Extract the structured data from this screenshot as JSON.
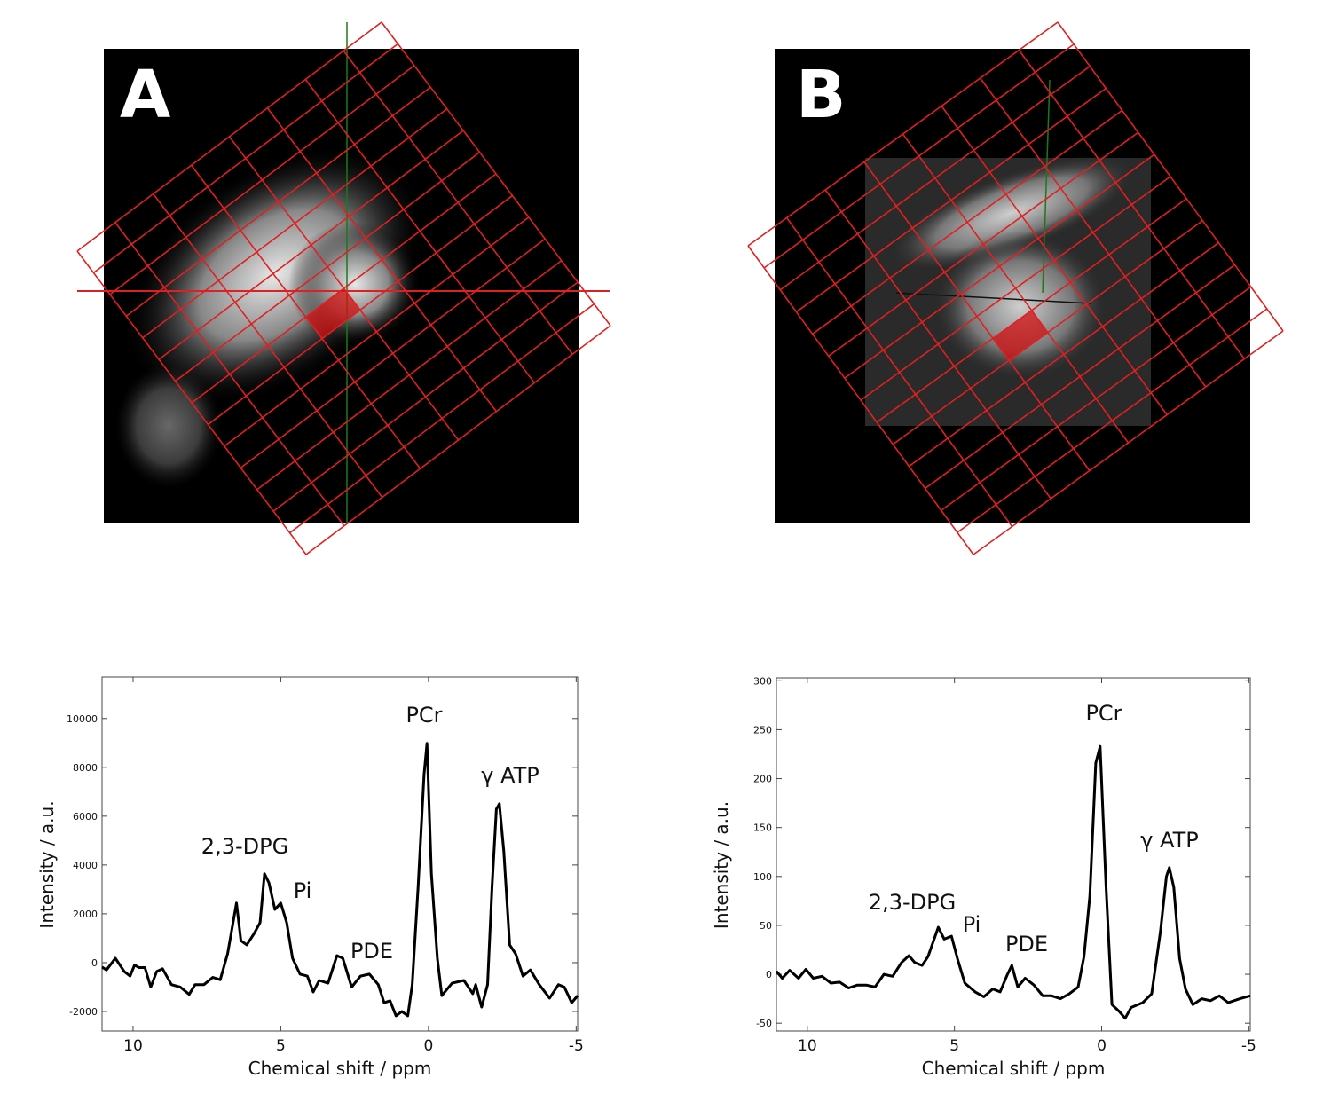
{
  "panels": [
    {
      "label": "A"
    },
    {
      "label": "B"
    }
  ],
  "chart_data": [
    {
      "type": "line",
      "xlabel": "Chemical shift / ppm",
      "ylabel": "Intensity / a.u.",
      "color": "#000000",
      "annotations": [
        "2,3-DPG",
        "Pi",
        "PDE",
        "PCr",
        "γ ATP"
      ],
      "xlim": [
        11.05,
        -5.05
      ],
      "xticks": [
        10,
        5,
        0,
        -5
      ],
      "ylim": [
        -2800,
        11700
      ],
      "yticks": [
        -2000,
        0,
        2000,
        4000,
        6000,
        8000,
        10000
      ],
      "x": [
        11.05,
        10.9,
        10.6,
        10.3,
        10.1,
        9.95,
        9.8,
        9.6,
        9.4,
        9.2,
        9.0,
        8.7,
        8.4,
        8.1,
        7.9,
        7.6,
        7.3,
        7.05,
        6.8,
        6.5,
        6.35,
        6.15,
        5.9,
        5.7,
        5.55,
        5.4,
        5.2,
        5.0,
        4.8,
        4.6,
        4.35,
        4.1,
        3.9,
        3.7,
        3.4,
        3.1,
        2.9,
        2.6,
        2.3,
        2.0,
        1.7,
        1.5,
        1.3,
        1.1,
        0.9,
        0.7,
        0.55,
        0.35,
        0.15,
        0.05,
        -0.1,
        -0.3,
        -0.45,
        -0.8,
        -1.2,
        -1.5,
        -1.6,
        -1.8,
        -2.0,
        -2.15,
        -2.3,
        -2.4,
        -2.55,
        -2.75,
        -2.95,
        -3.2,
        -3.45,
        -3.75,
        -4.1,
        -4.4,
        -4.6,
        -4.85,
        -5.05
      ],
      "values": [
        -180,
        -300,
        180,
        -360,
        -550,
        -100,
        -200,
        -200,
        -1000,
        -360,
        -250,
        -900,
        -1000,
        -1300,
        -900,
        -900,
        -600,
        -700,
        360,
        2440,
        900,
        730,
        1200,
        1640,
        3640,
        3270,
        2180,
        2440,
        1640,
        180,
        -470,
        -550,
        -1200,
        -730,
        -840,
        290,
        180,
        -1000,
        -550,
        -470,
        -900,
        -1640,
        -1560,
        -2180,
        -2000,
        -2180,
        -900,
        3090,
        7700,
        8980,
        3640,
        180,
        -1350,
        -840,
        -730,
        -1270,
        -900,
        -1820,
        -900,
        3090,
        6290,
        6510,
        4550,
        730,
        360,
        -550,
        -300,
        -900,
        -1450,
        -900,
        -1000,
        -1640,
        -1350
      ]
    },
    {
      "type": "line",
      "xlabel": "Chemical shift / ppm",
      "ylabel": "Intensity / a.u.",
      "color": "#000000",
      "annotations": [
        "2,3-DPG",
        "Pi",
        "PDE",
        "PCr",
        "γ ATP"
      ],
      "xlim": [
        11.05,
        -5.05
      ],
      "xticks": [
        10,
        5,
        0,
        -5
      ],
      "ylim": [
        -58,
        303
      ],
      "yticks": [
        -50,
        0,
        50,
        100,
        150,
        200,
        250,
        300
      ],
      "x": [
        11.05,
        10.85,
        10.6,
        10.3,
        10.05,
        9.8,
        9.5,
        9.2,
        8.9,
        8.6,
        8.3,
        8.0,
        7.7,
        7.4,
        7.1,
        6.8,
        6.55,
        6.35,
        6.1,
        5.9,
        5.55,
        5.35,
        5.1,
        4.9,
        4.65,
        4.3,
        4.0,
        3.7,
        3.45,
        3.2,
        3.05,
        2.85,
        2.6,
        2.3,
        2.0,
        1.7,
        1.4,
        1.1,
        0.8,
        0.6,
        0.4,
        0.2,
        0.05,
        -0.15,
        -0.35,
        -0.6,
        -0.8,
        -1.0,
        -1.4,
        -1.7,
        -2.0,
        -2.2,
        -2.3,
        -2.45,
        -2.65,
        -2.85,
        -3.1,
        -3.4,
        -3.7,
        -4.0,
        -4.3,
        -4.7,
        -5.05
      ],
      "values": [
        3,
        -4,
        4,
        -4,
        5,
        -4,
        -2,
        -9,
        -8,
        -14,
        -11,
        -11,
        -13,
        0,
        -2,
        12,
        19,
        12,
        9,
        18,
        48,
        36,
        39,
        16,
        -9,
        -18,
        -23,
        -15,
        -18,
        0,
        9,
        -13,
        -4,
        -11,
        -22,
        -22,
        -25,
        -20,
        -13,
        18,
        80,
        216,
        233,
        89,
        -31,
        -38,
        -45,
        -34,
        -29,
        -20,
        44,
        100,
        109,
        89,
        16,
        -15,
        -31,
        -25,
        -27,
        -22,
        -29,
        -25,
        -22
      ]
    }
  ]
}
